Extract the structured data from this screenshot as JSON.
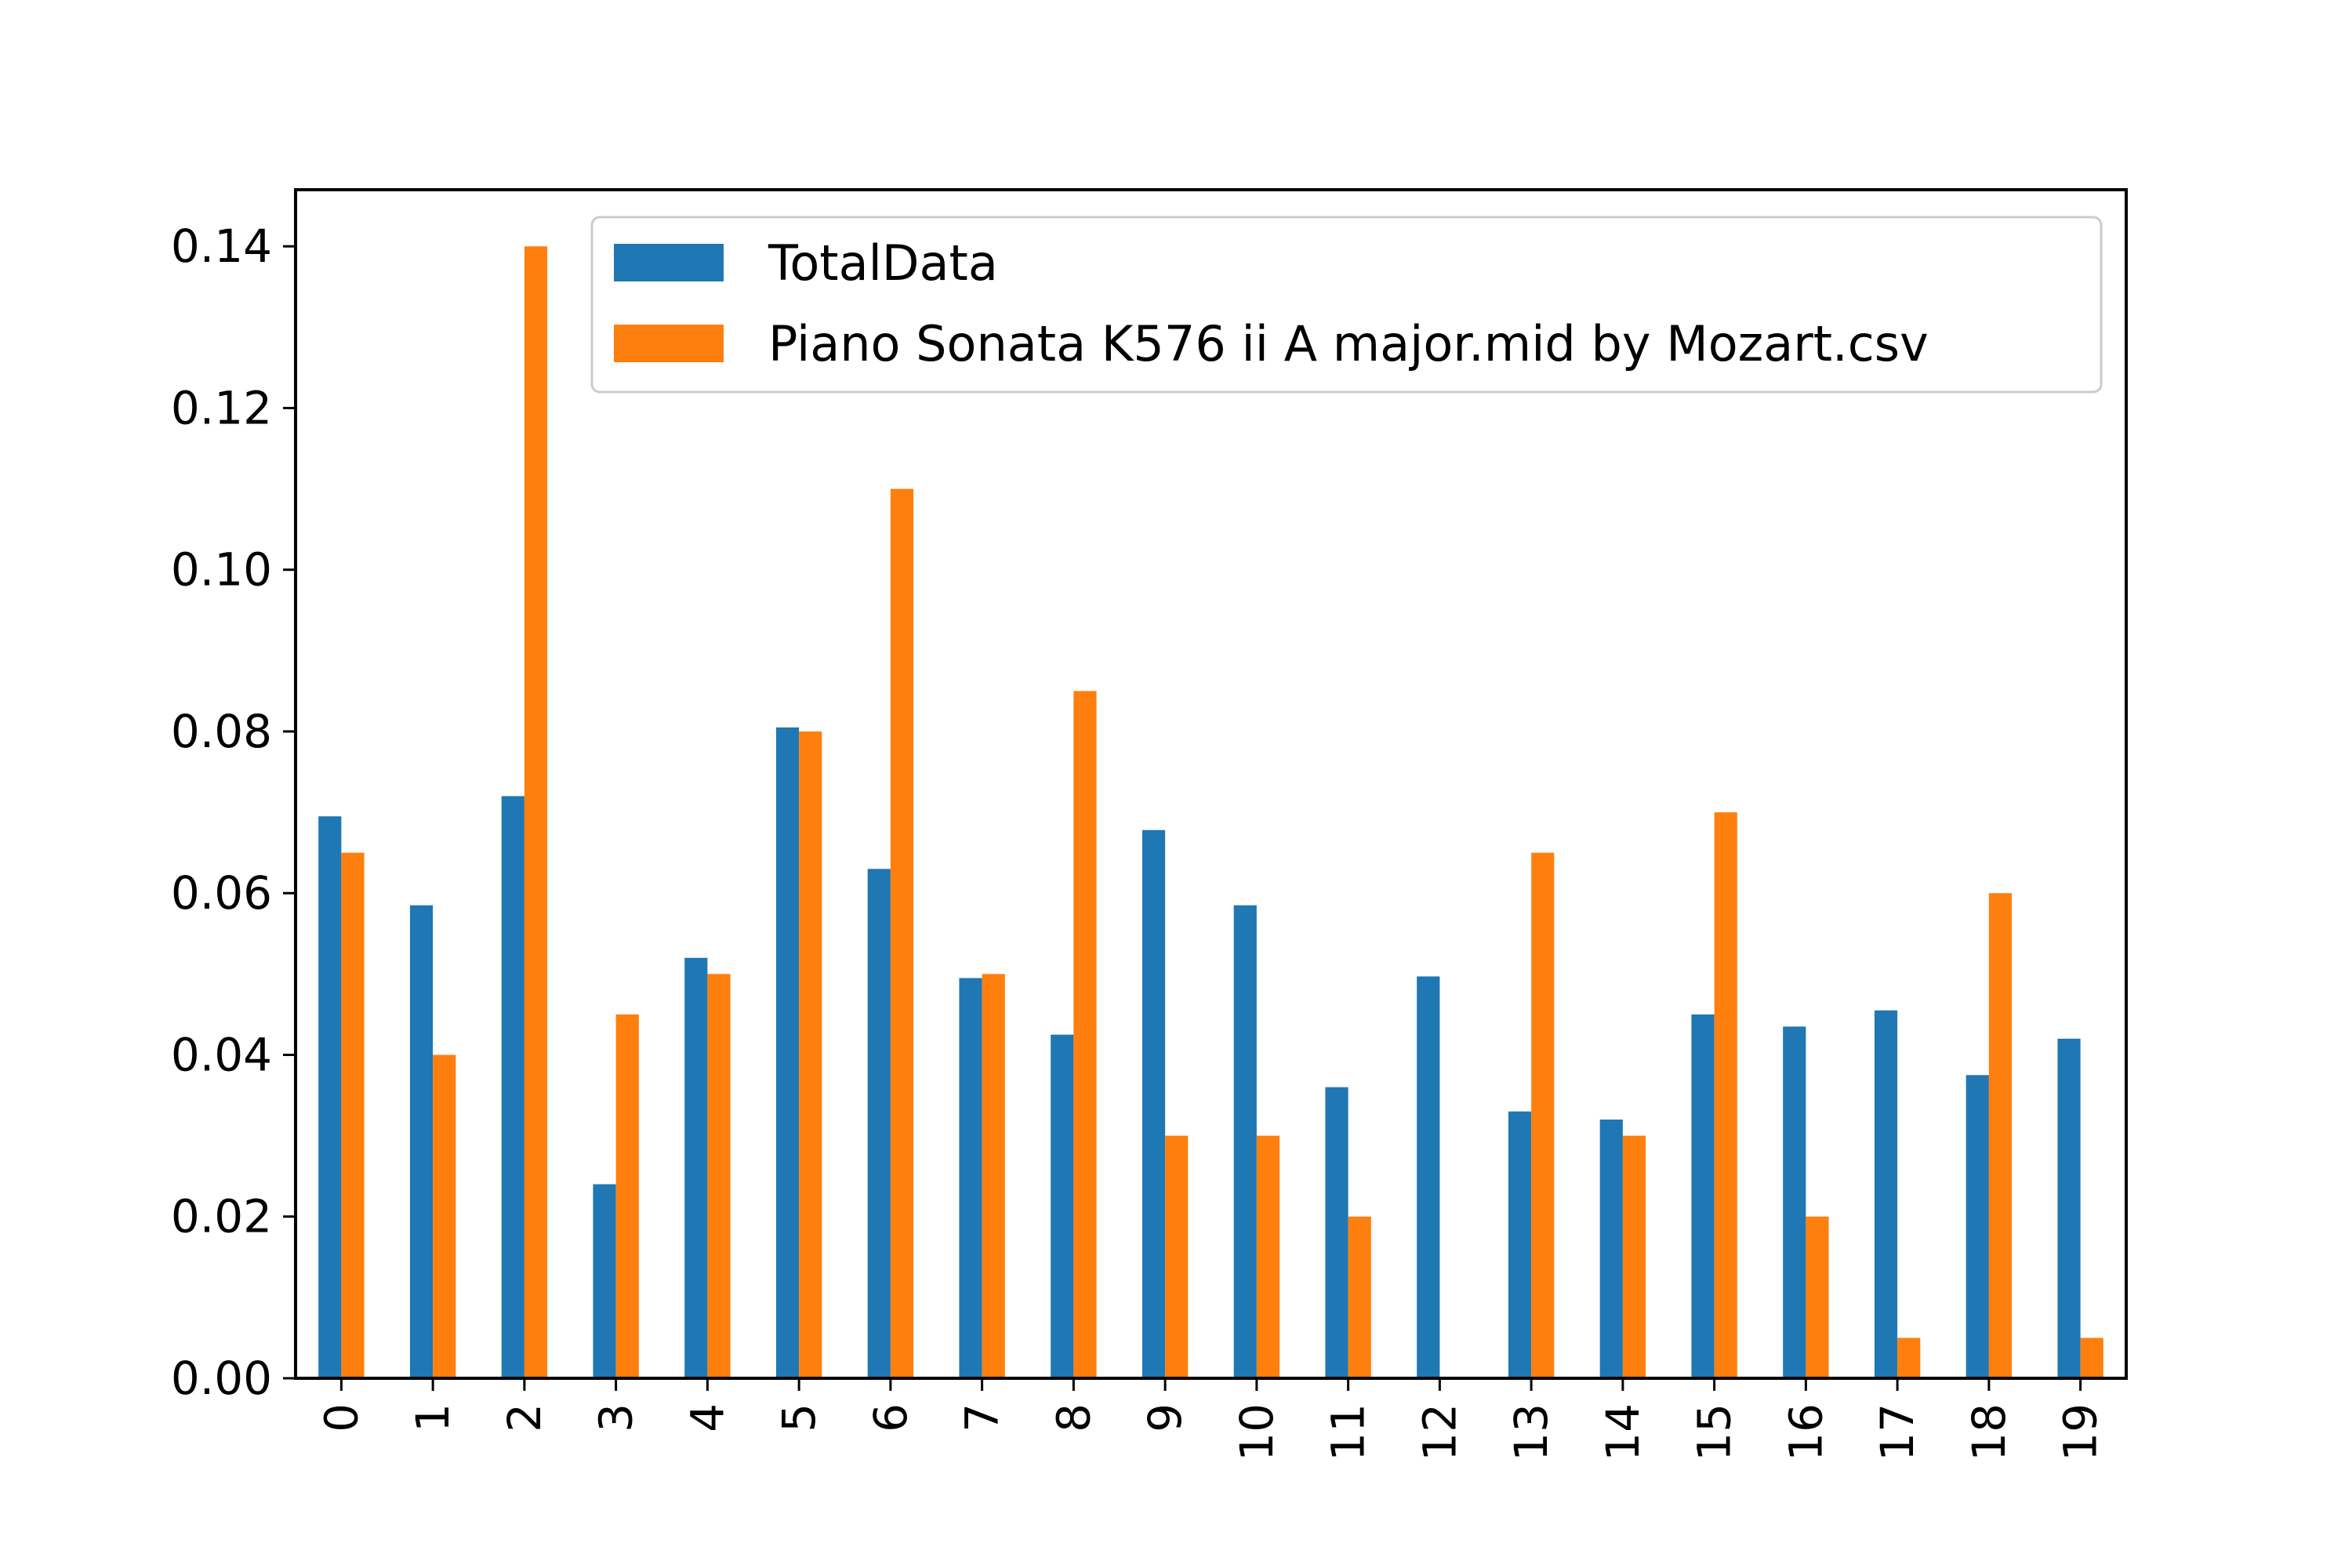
{
  "chart_data": {
    "type": "bar",
    "title": "",
    "xlabel": "",
    "ylabel": "",
    "categories": [
      "0",
      "1",
      "2",
      "3",
      "4",
      "5",
      "6",
      "7",
      "8",
      "9",
      "10",
      "11",
      "12",
      "13",
      "14",
      "15",
      "16",
      "17",
      "18",
      "19"
    ],
    "series": [
      {
        "name": "TotalData",
        "color": "#1f77b4",
        "values": [
          0.0695,
          0.0585,
          0.072,
          0.024,
          0.052,
          0.0805,
          0.063,
          0.0495,
          0.0425,
          0.0678,
          0.0585,
          0.036,
          0.0497,
          0.033,
          0.032,
          0.045,
          0.0435,
          0.0455,
          0.0375,
          0.042
        ]
      },
      {
        "name": "Piano Sonata K576 ii A major.mid by Mozart.csv",
        "color": "#ff7f0e",
        "values": [
          0.065,
          0.04,
          0.14,
          0.045,
          0.05,
          0.08,
          0.11,
          0.05,
          0.085,
          0.03,
          0.03,
          0.02,
          0.0,
          0.065,
          0.03,
          0.07,
          0.02,
          0.005,
          0.06,
          0.005
        ]
      }
    ],
    "ylim": [
      0,
      0.147
    ],
    "yticks": [
      0.0,
      0.02,
      0.04,
      0.06,
      0.08,
      0.1,
      0.12,
      0.14
    ],
    "ytick_labels": [
      "0.00",
      "0.02",
      "0.04",
      "0.06",
      "0.08",
      "0.10",
      "0.12",
      "0.14"
    ],
    "xtick_rotation": "vertical",
    "grid": false,
    "legend_position": "top-right"
  }
}
